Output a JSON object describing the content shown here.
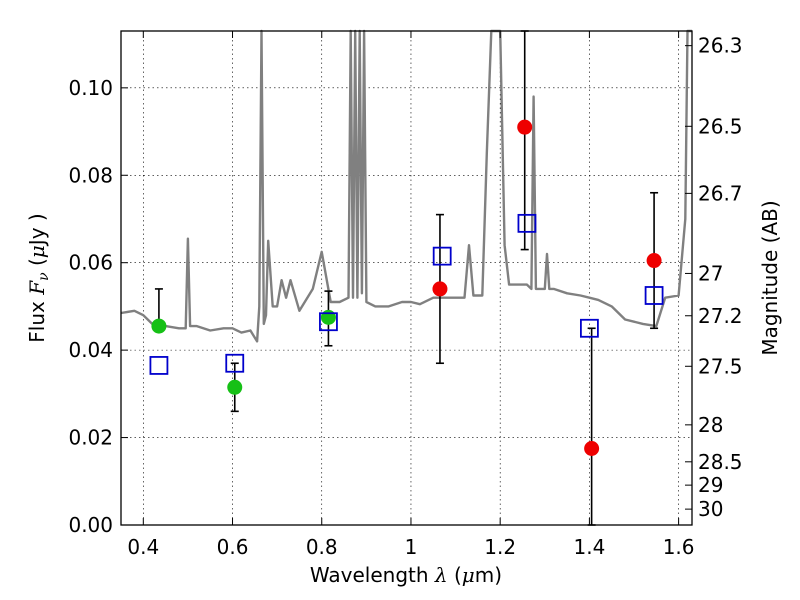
{
  "chart_data": {
    "type": "scatter",
    "xlabel": "Wavelength",
    "xlabel_symbol": "λ",
    "xlabel_unit_open": " (",
    "xlabel_unit_mu": "μ",
    "xlabel_unit_rest": "m)",
    "ylabel": "Flux",
    "ylabel_symbol": "F",
    "ylabel_symbol_sub": "ν",
    "ylabel_unit_open": "  (",
    "ylabel_unit_mu": "μ",
    "ylabel_unit_rest": "Jy )",
    "y2label": "Magnitude (AB)",
    "xlim": [
      0.35,
      1.63
    ],
    "ylim": [
      0.0,
      0.113
    ],
    "grid": true,
    "x_ticks": [
      0.4,
      0.6,
      0.8,
      1.0,
      1.2,
      1.4,
      1.6
    ],
    "x_tick_labels": [
      "0.4",
      "0.6",
      "0.8",
      "1",
      "1.2",
      "1.4",
      "1.6"
    ],
    "y_ticks": [
      0.0,
      0.02,
      0.04,
      0.06,
      0.08,
      0.1
    ],
    "y_tick_labels": [
      "0.00",
      "0.02",
      "0.04",
      "0.06",
      "0.08",
      "0.10"
    ],
    "mag_tick_labels": [
      "26.3",
      "26.5",
      "26.7",
      "27",
      "27.2",
      "27.5",
      "28",
      "28.5",
      "29",
      "30"
    ],
    "series": [
      {
        "marker": "circle",
        "color": "#16c016",
        "points": [
          {
            "x": 0.435,
            "y": 0.0455,
            "yerr_low": 0.0455,
            "yerr_high": 0.054
          },
          {
            "x": 0.605,
            "y": 0.0315,
            "yerr_low": 0.026,
            "yerr_high": 0.037
          },
          {
            "x": 0.815,
            "y": 0.0475,
            "yerr_low": 0.041,
            "yerr_high": 0.0535
          }
        ]
      },
      {
        "marker": "circle",
        "color": "#ee0000",
        "points": [
          {
            "x": 1.065,
            "y": 0.054,
            "yerr_low": 0.037,
            "yerr_high": 0.071
          },
          {
            "x": 1.255,
            "y": 0.091,
            "yerr_low": 0.063,
            "yerr_high": 0.113
          },
          {
            "x": 1.405,
            "y": 0.0175,
            "yerr_low": 0.0,
            "yerr_high": 0.045
          },
          {
            "x": 1.545,
            "y": 0.0605,
            "yerr_low": 0.045,
            "yerr_high": 0.076
          }
        ]
      },
      {
        "marker": "square-open",
        "color": "#0000cc",
        "points": [
          {
            "x": 0.435,
            "y": 0.0365
          },
          {
            "x": 0.605,
            "y": 0.037
          },
          {
            "x": 0.815,
            "y": 0.0465
          },
          {
            "x": 1.07,
            "y": 0.0615
          },
          {
            "x": 1.26,
            "y": 0.069
          },
          {
            "x": 1.4,
            "y": 0.045
          },
          {
            "x": 1.545,
            "y": 0.0525
          }
        ]
      },
      {
        "marker": "line",
        "color": "#808080",
        "x": [
          0.35,
          0.38,
          0.4,
          0.42,
          0.45,
          0.48,
          0.495,
          0.5,
          0.505,
          0.52,
          0.55,
          0.58,
          0.6,
          0.62,
          0.64,
          0.655,
          0.66,
          0.665,
          0.67,
          0.675,
          0.68,
          0.69,
          0.7,
          0.71,
          0.72,
          0.73,
          0.75,
          0.78,
          0.8,
          0.82,
          0.84,
          0.86,
          0.865,
          0.87,
          0.875,
          0.88,
          0.885,
          0.89,
          0.895,
          0.9,
          0.92,
          0.95,
          0.98,
          1.0,
          1.02,
          1.05,
          1.08,
          1.1,
          1.12,
          1.13,
          1.14,
          1.16,
          1.17,
          1.18,
          1.19,
          1.2,
          1.21,
          1.22,
          1.24,
          1.26,
          1.27,
          1.275,
          1.28,
          1.29,
          1.3,
          1.305,
          1.31,
          1.315,
          1.32,
          1.35,
          1.38,
          1.4,
          1.42,
          1.45,
          1.48,
          1.5,
          1.52,
          1.55,
          1.57,
          1.6,
          1.615,
          1.62,
          1.625,
          1.63
        ],
        "y": [
          0.0485,
          0.049,
          0.048,
          0.046,
          0.0455,
          0.045,
          0.045,
          0.0655,
          0.0455,
          0.0455,
          0.0445,
          0.045,
          0.045,
          0.044,
          0.0445,
          0.042,
          0.05,
          0.113,
          0.046,
          0.048,
          0.065,
          0.05,
          0.05,
          0.056,
          0.052,
          0.056,
          0.049,
          0.054,
          0.0625,
          0.051,
          0.051,
          0.052,
          0.113,
          0.052,
          0.113,
          0.052,
          0.113,
          0.053,
          0.113,
          0.051,
          0.05,
          0.05,
          0.051,
          0.051,
          0.0505,
          0.052,
          0.052,
          0.052,
          0.052,
          0.064,
          0.0525,
          0.0525,
          0.085,
          0.113,
          0.113,
          0.113,
          0.064,
          0.055,
          0.055,
          0.055,
          0.054,
          0.098,
          0.054,
          0.054,
          0.054,
          0.062,
          0.054,
          0.054,
          0.054,
          0.053,
          0.0525,
          0.052,
          0.0515,
          0.05,
          0.047,
          0.0465,
          0.046,
          0.0455,
          0.052,
          0.0525,
          0.07,
          0.113,
          0.113,
          0.113
        ]
      }
    ]
  }
}
